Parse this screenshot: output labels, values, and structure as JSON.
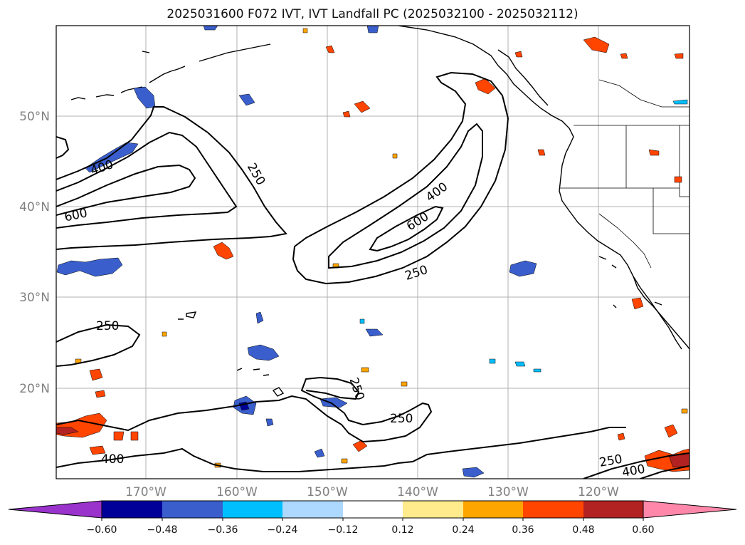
{
  "title": "2025031600 F072 IVT, IVT Landfall PC (2025032100 - 2025032112)",
  "lat_labels": [
    "50°N",
    "40°N",
    "30°N",
    "20°N"
  ],
  "lon_labels": [
    "170°W",
    "160°W",
    "150°W",
    "140°W",
    "130°W",
    "120°W"
  ],
  "contour_labels": {
    "c400_nw": "400",
    "c600_w": "600",
    "c250_nw": "250",
    "c400_center": "400",
    "c600_center": "600",
    "c250_center": "250",
    "c250_sw": "250",
    "c250_s1": "250",
    "c250_s2": "250",
    "c400_sw": "400",
    "c250_se": "250",
    "c400_se": "400"
  },
  "colorbar": {
    "ticks": [
      "−0.60",
      "−0.48",
      "−0.36",
      "−0.24",
      "−0.12",
      "0.12",
      "0.24",
      "0.36",
      "0.48",
      "0.60"
    ],
    "colors": [
      "#9933cc",
      "#000099",
      "#3a5fcd",
      "#00bfff",
      "#add8ff",
      "#ffffff",
      "#ffeb8c",
      "#ffa500",
      "#ff4500",
      "#b22222",
      "#ff88aa"
    ]
  }
}
